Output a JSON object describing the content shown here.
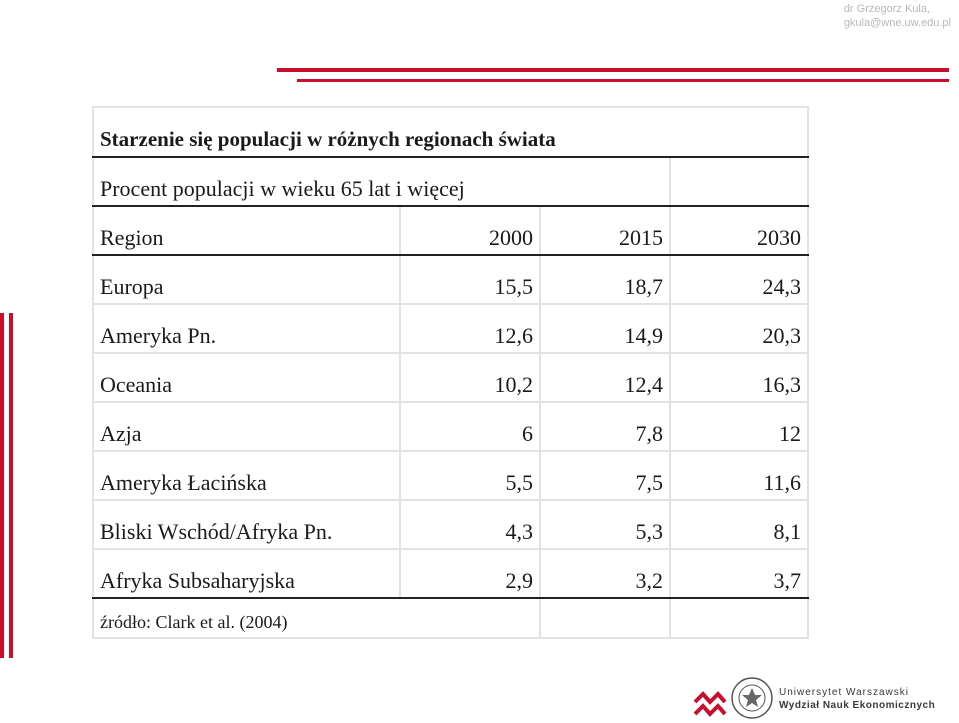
{
  "author": {
    "name": "dr Grzegorz Kula,",
    "email": "gkula@wne.uw.edu.pl"
  },
  "table": {
    "title": "Starzenie się populacji w różnych regionach świata",
    "subtitle": "Procent populacji w wieku 65 lat i więcej",
    "headers": [
      "Region",
      "2000",
      "2015",
      "2030"
    ],
    "rows": [
      [
        "Europa",
        "15,5",
        "18,7",
        "24,3"
      ],
      [
        "Ameryka Pn.",
        "12,6",
        "14,9",
        "20,3"
      ],
      [
        "Oceania",
        "10,2",
        "12,4",
        "16,3"
      ],
      [
        "Azja",
        "6",
        "7,8",
        "12"
      ],
      [
        "Ameryka Łacińska",
        "5,5",
        "7,5",
        "11,6"
      ],
      [
        "Bliski Wschód/Afryka Pn.",
        "4,3",
        "5,3",
        "8,1"
      ],
      [
        "Afryka Subsaharyjska",
        "2,9",
        "3,2",
        "3,7"
      ]
    ],
    "source": "źródło: Clark et al. (2004)"
  },
  "logo": {
    "university": "Uniwersytet Warszawski",
    "faculty": "Wydział Nauk Ekonomicznych"
  },
  "colors": {
    "accent": "#c8102e",
    "grid": "#e2e2e2",
    "rule": "#222222"
  }
}
